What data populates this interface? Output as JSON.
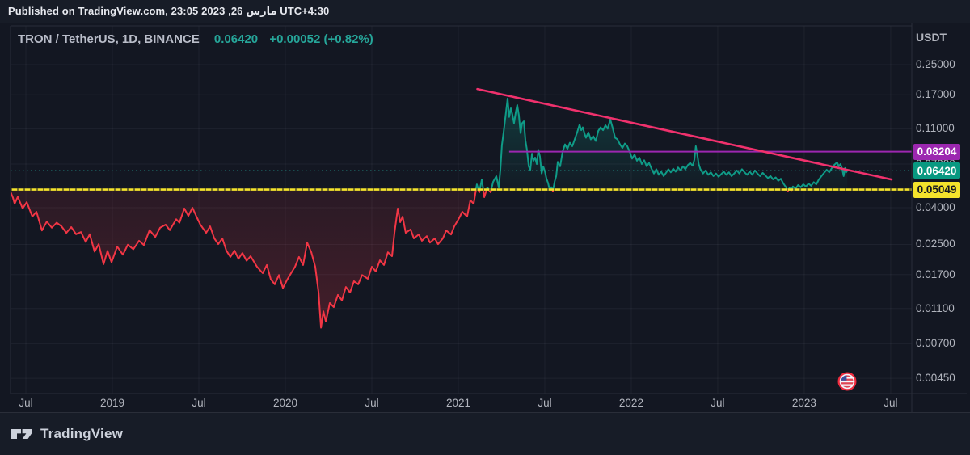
{
  "published_bar": {
    "text": "Published on TradingView.com, 23:05 2023 ,26 مارس UTC+4:30"
  },
  "header": {
    "symbol": "TRON / TetherUS, 1D, BINANCE",
    "last_price": "0.06420",
    "change": "+0.00052 (+0.82%)"
  },
  "footer": {
    "brand": "TradingView"
  },
  "chart_data": {
    "type": "line",
    "style": "baseline",
    "title": "TRON / TetherUS, 1D, BINANCE",
    "unit_label": "USDT",
    "scale": "log",
    "grid": true,
    "x_domain_years": [
      2018.411,
      2023.622
    ],
    "y_domain": [
      0.0037,
      0.411
    ],
    "baseline_value": 0.05049,
    "current_price": 0.0642,
    "up_color": "#0f9b87",
    "down_color": "#f23645",
    "grid_color": "rgba(240,243,250,0.055)",
    "frame_color": "#2a2e39",
    "x_ticks": [
      {
        "label": "Jul",
        "t": 2018.5
      },
      {
        "label": "2019",
        "t": 2019.0
      },
      {
        "label": "Jul",
        "t": 2019.5
      },
      {
        "label": "2020",
        "t": 2020.0
      },
      {
        "label": "Jul",
        "t": 2020.5
      },
      {
        "label": "2021",
        "t": 2021.0
      },
      {
        "label": "Jul",
        "t": 2021.5
      },
      {
        "label": "2022",
        "t": 2022.0
      },
      {
        "label": "Jul",
        "t": 2022.5
      },
      {
        "label": "2023",
        "t": 2023.0
      },
      {
        "label": "Jul",
        "t": 2023.5
      }
    ],
    "y_ticks": [
      {
        "label": "0.25000",
        "value": 0.25
      },
      {
        "label": "0.17000",
        "value": 0.17
      },
      {
        "label": "0.11000",
        "value": 0.11
      },
      {
        "label": "0.07000",
        "value": 0.07
      },
      {
        "label": "0.04000",
        "value": 0.04
      },
      {
        "label": "0.02500",
        "value": 0.025
      },
      {
        "label": "0.01700",
        "value": 0.017
      },
      {
        "label": "0.01100",
        "value": 0.011
      },
      {
        "label": "0.00700",
        "value": 0.007
      },
      {
        "label": "0.00450",
        "value": 0.0045
      }
    ],
    "price_lines": [
      {
        "name": "resistance",
        "value": 0.08204,
        "badge_text": "0.08204",
        "color": "#9c27b0",
        "badge_bg": "#9c27b0",
        "badge_fg": "#ffffff",
        "from_t": 2021.294,
        "to_t": 2023.622,
        "line_style": "solid"
      },
      {
        "name": "current-price",
        "value": 0.0642,
        "badge_text": "0.06420",
        "color": "#26a69a",
        "badge_bg": "#089981",
        "badge_fg": "#ffffff",
        "from_t": 2018.411,
        "to_t": 2023.622,
        "line_style": "dotted"
      },
      {
        "name": "support-baseline",
        "value": 0.05049,
        "badge_text": "0.05049",
        "color": "#f4e32c",
        "badge_bg": "#f4e32c",
        "badge_fg": "#131722",
        "from_t": 2018.411,
        "to_t": 2023.622,
        "line_style": "solid-ticked"
      }
    ],
    "trendline": {
      "name": "descending-trendline",
      "color": "#f0316d",
      "from": {
        "t": 2021.11,
        "price": 0.183
      },
      "to": {
        "t": 2023.505,
        "price": 0.0574
      }
    },
    "event_marker": {
      "icon": "us-flag",
      "t": 2023.248
    },
    "series": [
      [
        2018.411,
        0.049
      ],
      [
        2018.425,
        0.0455
      ],
      [
        2018.435,
        0.0421
      ],
      [
        2018.453,
        0.046
      ],
      [
        2018.481,
        0.0396
      ],
      [
        2018.505,
        0.043
      ],
      [
        2018.537,
        0.0357
      ],
      [
        2018.561,
        0.038
      ],
      [
        2018.593,
        0.0299
      ],
      [
        2018.621,
        0.0335
      ],
      [
        2018.65,
        0.031
      ],
      [
        2018.678,
        0.033
      ],
      [
        2018.706,
        0.0315
      ],
      [
        2018.734,
        0.029
      ],
      [
        2018.762,
        0.0312
      ],
      [
        2018.79,
        0.0285
      ],
      [
        2018.818,
        0.0293
      ],
      [
        2018.846,
        0.0258
      ],
      [
        2018.869,
        0.0285
      ],
      [
        2018.897,
        0.0228
      ],
      [
        2018.921,
        0.0251
      ],
      [
        2018.949,
        0.0194
      ],
      [
        2018.972,
        0.023
      ],
      [
        2018.995,
        0.0199
      ],
      [
        2019.028,
        0.0243
      ],
      [
        2019.061,
        0.0219
      ],
      [
        2019.089,
        0.0249
      ],
      [
        2019.121,
        0.0235
      ],
      [
        2019.154,
        0.0262
      ],
      [
        2019.182,
        0.0248
      ],
      [
        2019.215,
        0.03
      ],
      [
        2019.248,
        0.0275
      ],
      [
        2019.276,
        0.031
      ],
      [
        2019.308,
        0.0322
      ],
      [
        2019.332,
        0.03
      ],
      [
        2019.369,
        0.0345
      ],
      [
        2019.388,
        0.033
      ],
      [
        2019.416,
        0.0396
      ],
      [
        2019.439,
        0.036
      ],
      [
        2019.463,
        0.04
      ],
      [
        2019.486,
        0.0357
      ],
      [
        2019.509,
        0.0322
      ],
      [
        2019.542,
        0.029
      ],
      [
        2019.565,
        0.0315
      ],
      [
        2019.589,
        0.027
      ],
      [
        2019.612,
        0.0251
      ],
      [
        2019.636,
        0.027
      ],
      [
        2019.659,
        0.0231
      ],
      [
        2019.682,
        0.0213
      ],
      [
        2019.706,
        0.0231
      ],
      [
        2019.729,
        0.0208
      ],
      [
        2019.752,
        0.0224
      ],
      [
        2019.776,
        0.0203
      ],
      [
        2019.799,
        0.0215
      ],
      [
        2019.836,
        0.0188
      ],
      [
        2019.869,
        0.0173
      ],
      [
        2019.893,
        0.0192
      ],
      [
        2019.916,
        0.016
      ],
      [
        2019.939,
        0.015
      ],
      [
        2019.963,
        0.0169
      ],
      [
        2019.986,
        0.0143
      ],
      [
        2020.009,
        0.0158
      ],
      [
        2020.033,
        0.0173
      ],
      [
        2020.056,
        0.0188
      ],
      [
        2020.079,
        0.0213
      ],
      [
        2020.103,
        0.0192
      ],
      [
        2020.126,
        0.0256
      ],
      [
        2020.15,
        0.0226
      ],
      [
        2020.173,
        0.0188
      ],
      [
        2020.192,
        0.0135
      ],
      [
        2020.206,
        0.0086
      ],
      [
        2020.22,
        0.0106
      ],
      [
        2020.234,
        0.0093
      ],
      [
        2020.257,
        0.0118
      ],
      [
        2020.28,
        0.0112
      ],
      [
        2020.304,
        0.0131
      ],
      [
        2020.327,
        0.0122
      ],
      [
        2020.35,
        0.0145
      ],
      [
        2020.374,
        0.0135
      ],
      [
        2020.397,
        0.0156
      ],
      [
        2020.421,
        0.015
      ],
      [
        2020.444,
        0.0169
      ],
      [
        2020.477,
        0.0161
      ],
      [
        2020.5,
        0.0188
      ],
      [
        2020.523,
        0.0177
      ],
      [
        2020.547,
        0.0204
      ],
      [
        2020.57,
        0.0192
      ],
      [
        2020.593,
        0.0226
      ],
      [
        2020.617,
        0.0215
      ],
      [
        2020.631,
        0.029
      ],
      [
        2020.65,
        0.0396
      ],
      [
        2020.664,
        0.0332
      ],
      [
        2020.678,
        0.0357
      ],
      [
        2020.696,
        0.029
      ],
      [
        2020.724,
        0.0303
      ],
      [
        2020.743,
        0.027
      ],
      [
        2020.771,
        0.0284
      ],
      [
        2020.79,
        0.0262
      ],
      [
        2020.818,
        0.0278
      ],
      [
        2020.836,
        0.0256
      ],
      [
        2020.864,
        0.027
      ],
      [
        2020.883,
        0.0251
      ],
      [
        2020.911,
        0.027
      ],
      [
        2020.93,
        0.0299
      ],
      [
        2020.958,
        0.0284
      ],
      [
        2020.977,
        0.0315
      ],
      [
        2021.005,
        0.035
      ],
      [
        2021.023,
        0.038
      ],
      [
        2021.051,
        0.0357
      ],
      [
        2021.07,
        0.044
      ],
      [
        2021.089,
        0.0421
      ],
      [
        2021.107,
        0.054
      ],
      [
        2021.121,
        0.0487
      ],
      [
        2021.136,
        0.0575
      ],
      [
        2021.15,
        0.0458
      ],
      [
        2021.168,
        0.0518
      ],
      [
        2021.187,
        0.0487
      ],
      [
        2021.201,
        0.0557
      ],
      [
        2021.22,
        0.0599
      ],
      [
        2021.234,
        0.0518
      ],
      [
        2021.243,
        0.065
      ],
      [
        2021.252,
        0.089
      ],
      [
        2021.262,
        0.105
      ],
      [
        2021.271,
        0.125
      ],
      [
        2021.285,
        0.162
      ],
      [
        2021.294,
        0.128
      ],
      [
        2021.304,
        0.143
      ],
      [
        2021.313,
        0.132
      ],
      [
        2021.322,
        0.118
      ],
      [
        2021.332,
        0.135
      ],
      [
        2021.341,
        0.149
      ],
      [
        2021.35,
        0.131
      ],
      [
        2021.36,
        0.104
      ],
      [
        2021.369,
        0.118
      ],
      [
        2021.379,
        0.121
      ],
      [
        2021.388,
        0.095
      ],
      [
        2021.397,
        0.084
      ],
      [
        2021.407,
        0.068
      ],
      [
        2021.416,
        0.065
      ],
      [
        2021.426,
        0.08
      ],
      [
        2021.435,
        0.073
      ],
      [
        2021.444,
        0.076
      ],
      [
        2021.454,
        0.07
      ],
      [
        2021.463,
        0.084
      ],
      [
        2021.472,
        0.077
      ],
      [
        2021.482,
        0.062
      ],
      [
        2021.491,
        0.068
      ],
      [
        2021.5,
        0.064
      ],
      [
        2021.51,
        0.058
      ],
      [
        2021.519,
        0.055
      ],
      [
        2021.528,
        0.0505
      ],
      [
        2021.538,
        0.052
      ],
      [
        2021.547,
        0.0495
      ],
      [
        2021.557,
        0.056
      ],
      [
        2021.566,
        0.06
      ],
      [
        2021.575,
        0.072
      ],
      [
        2021.589,
        0.068
      ],
      [
        2021.603,
        0.082
      ],
      [
        2021.617,
        0.09
      ],
      [
        2021.631,
        0.085
      ],
      [
        2021.645,
        0.092
      ],
      [
        2021.659,
        0.088
      ],
      [
        2021.673,
        0.096
      ],
      [
        2021.687,
        0.105
      ],
      [
        2021.701,
        0.116
      ],
      [
        2021.711,
        0.108
      ],
      [
        2021.72,
        0.112
      ],
      [
        2021.729,
        0.104
      ],
      [
        2021.738,
        0.098
      ],
      [
        2021.752,
        0.105
      ],
      [
        2021.766,
        0.096
      ],
      [
        2021.78,
        0.1
      ],
      [
        2021.795,
        0.094
      ],
      [
        2021.809,
        0.107
      ],
      [
        2021.823,
        0.112
      ],
      [
        2021.837,
        0.108
      ],
      [
        2021.851,
        0.115
      ],
      [
        2021.864,
        0.11
      ],
      [
        2021.879,
        0.124
      ],
      [
        2021.893,
        0.111
      ],
      [
        2021.907,
        0.098
      ],
      [
        2021.921,
        0.096
      ],
      [
        2021.935,
        0.09
      ],
      [
        2021.949,
        0.086
      ],
      [
        2021.963,
        0.091
      ],
      [
        2021.977,
        0.088
      ],
      [
        2021.991,
        0.082
      ],
      [
        2022.005,
        0.075
      ],
      [
        2022.019,
        0.079
      ],
      [
        2022.033,
        0.073
      ],
      [
        2022.047,
        0.076
      ],
      [
        2022.061,
        0.07
      ],
      [
        2022.075,
        0.0735
      ],
      [
        2022.089,
        0.068
      ],
      [
        2022.103,
        0.071
      ],
      [
        2022.117,
        0.066
      ],
      [
        2022.131,
        0.062
      ],
      [
        2022.145,
        0.0655
      ],
      [
        2022.159,
        0.061
      ],
      [
        2022.173,
        0.0635
      ],
      [
        2022.187,
        0.06
      ],
      [
        2022.201,
        0.0625
      ],
      [
        2022.215,
        0.0655
      ],
      [
        2022.229,
        0.063
      ],
      [
        2022.243,
        0.066
      ],
      [
        2022.257,
        0.0635
      ],
      [
        2022.271,
        0.067
      ],
      [
        2022.285,
        0.0645
      ],
      [
        2022.299,
        0.068
      ],
      [
        2022.313,
        0.0655
      ],
      [
        2022.327,
        0.069
      ],
      [
        2022.341,
        0.071
      ],
      [
        2022.355,
        0.0685
      ],
      [
        2022.365,
        0.074
      ],
      [
        2022.373,
        0.088
      ],
      [
        2022.381,
        0.08
      ],
      [
        2022.39,
        0.07
      ],
      [
        2022.4,
        0.0655
      ],
      [
        2022.415,
        0.062
      ],
      [
        2022.43,
        0.0645
      ],
      [
        2022.445,
        0.061
      ],
      [
        2022.46,
        0.063
      ],
      [
        2022.475,
        0.06
      ],
      [
        2022.49,
        0.062
      ],
      [
        2022.505,
        0.0595
      ],
      [
        2022.52,
        0.0615
      ],
      [
        2022.535,
        0.0635
      ],
      [
        2022.55,
        0.061
      ],
      [
        2022.565,
        0.063
      ],
      [
        2022.58,
        0.06
      ],
      [
        2022.595,
        0.062
      ],
      [
        2022.61,
        0.0645
      ],
      [
        2022.625,
        0.062
      ],
      [
        2022.64,
        0.0655
      ],
      [
        2022.655,
        0.063
      ],
      [
        2022.67,
        0.061
      ],
      [
        2022.685,
        0.0635
      ],
      [
        2022.7,
        0.061
      ],
      [
        2022.715,
        0.0645
      ],
      [
        2022.73,
        0.062
      ],
      [
        2022.745,
        0.06
      ],
      [
        2022.76,
        0.0625
      ],
      [
        2022.775,
        0.0605
      ],
      [
        2022.79,
        0.0585
      ],
      [
        2022.805,
        0.06
      ],
      [
        2022.82,
        0.0575
      ],
      [
        2022.835,
        0.059
      ],
      [
        2022.85,
        0.0565
      ],
      [
        2022.865,
        0.058
      ],
      [
        2022.88,
        0.0545
      ],
      [
        2022.895,
        0.052
      ],
      [
        2022.905,
        0.0495
      ],
      [
        2022.915,
        0.0515
      ],
      [
        2022.925,
        0.05
      ],
      [
        2022.935,
        0.0525
      ],
      [
        2022.95,
        0.051
      ],
      [
        2022.965,
        0.0535
      ],
      [
        2022.98,
        0.052
      ],
      [
        2022.995,
        0.054
      ],
      [
        2023.01,
        0.0525
      ],
      [
        2023.025,
        0.0545
      ],
      [
        2023.04,
        0.053
      ],
      [
        2023.055,
        0.0555
      ],
      [
        2023.07,
        0.054
      ],
      [
        2023.085,
        0.0575
      ],
      [
        2023.1,
        0.06
      ],
      [
        2023.115,
        0.0625
      ],
      [
        2023.13,
        0.065
      ],
      [
        2023.145,
        0.063
      ],
      [
        2023.16,
        0.0665
      ],
      [
        2023.175,
        0.0695
      ],
      [
        2023.19,
        0.0715
      ],
      [
        2023.2,
        0.068
      ],
      [
        2023.21,
        0.07
      ],
      [
        2023.22,
        0.0655
      ],
      [
        2023.228,
        0.06
      ],
      [
        2023.236,
        0.0665
      ],
      [
        2023.242,
        0.063
      ],
      [
        2023.249,
        0.0642
      ]
    ]
  }
}
